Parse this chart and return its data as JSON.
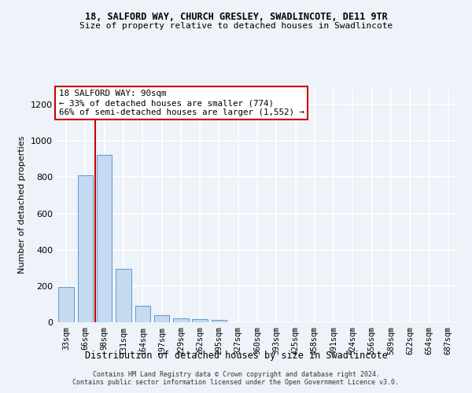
{
  "title": "18, SALFORD WAY, CHURCH GRESLEY, SWADLINCOTE, DE11 9TR",
  "subtitle": "Size of property relative to detached houses in Swadlincote",
  "xlabel": "Distribution of detached houses by size in Swadlincote",
  "ylabel": "Number of detached properties",
  "bar_color": "#c5d9f0",
  "bar_edge_color": "#5b9bd5",
  "categories": [
    "33sqm",
    "66sqm",
    "98sqm",
    "131sqm",
    "164sqm",
    "197sqm",
    "229sqm",
    "262sqm",
    "295sqm",
    "327sqm",
    "360sqm",
    "393sqm",
    "425sqm",
    "458sqm",
    "491sqm",
    "524sqm",
    "556sqm",
    "589sqm",
    "622sqm",
    "654sqm",
    "687sqm"
  ],
  "values": [
    195,
    810,
    925,
    295,
    90,
    37,
    20,
    18,
    13,
    0,
    0,
    0,
    0,
    0,
    0,
    0,
    0,
    0,
    0,
    0,
    0
  ],
  "ylim": [
    0,
    1300
  ],
  "yticks": [
    0,
    200,
    400,
    600,
    800,
    1000,
    1200
  ],
  "property_label": "18 SALFORD WAY: 90sqm",
  "annotation_line1": "← 33% of detached houses are smaller (774)",
  "annotation_line2": "66% of semi-detached houses are larger (1,552) →",
  "vline_color": "#cc0000",
  "annotation_box_color": "#ffffff",
  "annotation_box_edge": "#cc0000",
  "footer_line1": "Contains HM Land Registry data © Crown copyright and database right 2024.",
  "footer_line2": "Contains public sector information licensed under the Open Government Licence v3.0.",
  "background_color": "#eef2f9",
  "grid_color": "#ffffff"
}
